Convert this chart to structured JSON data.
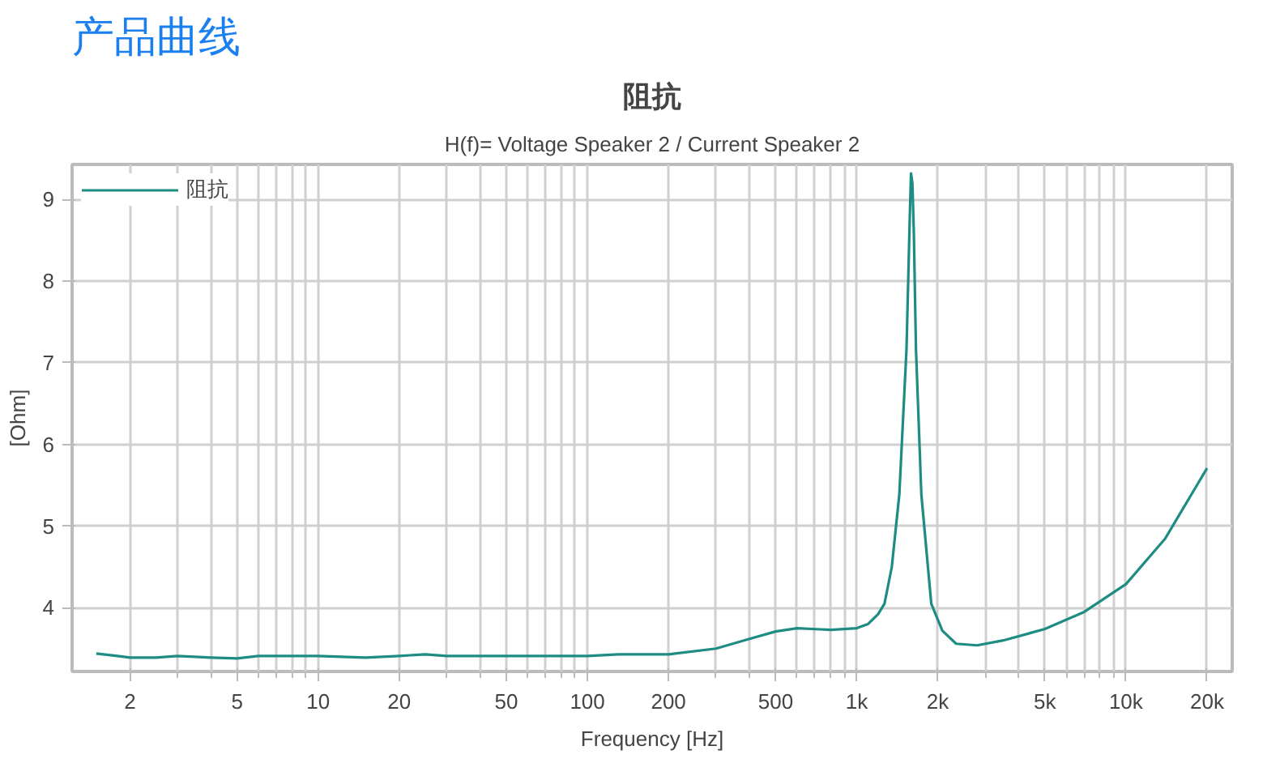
{
  "chart_data": {
    "type": "line",
    "title": "阻抗",
    "subtitle": "H(f)= Voltage Speaker 2 / Current Speaker 2",
    "annotations": [
      "产品曲线"
    ],
    "xlabel": "Frequency [Hz]",
    "ylabel": "[Ohm]",
    "log": "x",
    "grid": true,
    "legend": "top left",
    "marker": "none",
    "line_style": "solid",
    "xlim": [
      1.22,
      24800
    ],
    "ylim": [
      3.22,
      9.43
    ],
    "xticks": [
      {
        "value": 2,
        "label": "2"
      },
      {
        "value": 3,
        "label": null
      },
      {
        "value": 4,
        "label": null
      },
      {
        "value": 5,
        "label": "5"
      },
      {
        "value": 6,
        "label": null
      },
      {
        "value": 7,
        "label": null
      },
      {
        "value": 8,
        "label": null
      },
      {
        "value": 9,
        "label": null
      },
      {
        "value": 10,
        "label": "10"
      },
      {
        "value": 20,
        "label": "20"
      },
      {
        "value": 30,
        "label": null
      },
      {
        "value": 40,
        "label": null
      },
      {
        "value": 50,
        "label": "50"
      },
      {
        "value": 60,
        "label": null
      },
      {
        "value": 70,
        "label": null
      },
      {
        "value": 80,
        "label": null
      },
      {
        "value": 90,
        "label": null
      },
      {
        "value": 100,
        "label": "100"
      },
      {
        "value": 200,
        "label": "200"
      },
      {
        "value": 300,
        "label": null
      },
      {
        "value": 400,
        "label": null
      },
      {
        "value": 500,
        "label": "500"
      },
      {
        "value": 600,
        "label": null
      },
      {
        "value": 700,
        "label": null
      },
      {
        "value": 800,
        "label": null
      },
      {
        "value": 900,
        "label": null
      },
      {
        "value": 1000,
        "label": "1k"
      },
      {
        "value": 2000,
        "label": "2k"
      },
      {
        "value": 3000,
        "label": null
      },
      {
        "value": 4000,
        "label": null
      },
      {
        "value": 5000,
        "label": "5k"
      },
      {
        "value": 6000,
        "label": null
      },
      {
        "value": 7000,
        "label": null
      },
      {
        "value": 8000,
        "label": null
      },
      {
        "value": 9000,
        "label": null
      },
      {
        "value": 10000,
        "label": "10k"
      },
      {
        "value": 20000,
        "label": "20k"
      }
    ],
    "yticks": [
      4,
      5,
      6,
      7,
      8,
      9
    ],
    "series": [
      {
        "name": "阻抗",
        "color": "#1e8c82",
        "x": [
          1.5,
          1.8,
          2,
          2.5,
          3,
          4,
          5,
          6,
          10,
          15,
          20,
          25,
          30,
          50,
          100,
          130,
          200,
          300,
          400,
          500,
          600,
          800,
          1000,
          1100,
          1200,
          1268,
          1350,
          1440,
          1531,
          1575,
          1591,
          1610,
          1630,
          1660,
          1738,
          1892,
          2080,
          2340,
          2800,
          3500,
          5000,
          7000,
          10000,
          14000,
          20000
        ],
        "values": [
          3.44,
          3.41,
          3.39,
          3.39,
          3.41,
          3.39,
          3.38,
          3.41,
          3.41,
          3.39,
          3.41,
          3.43,
          3.41,
          3.41,
          3.41,
          3.43,
          3.43,
          3.5,
          3.62,
          3.71,
          3.75,
          3.73,
          3.75,
          3.8,
          3.92,
          4.05,
          4.5,
          5.39,
          7.17,
          8.8,
          9.32,
          9.2,
          8.6,
          7.17,
          5.39,
          4.05,
          3.72,
          3.56,
          3.54,
          3.6,
          3.74,
          3.95,
          4.29,
          4.85,
          5.71
        ]
      }
    ]
  }
}
